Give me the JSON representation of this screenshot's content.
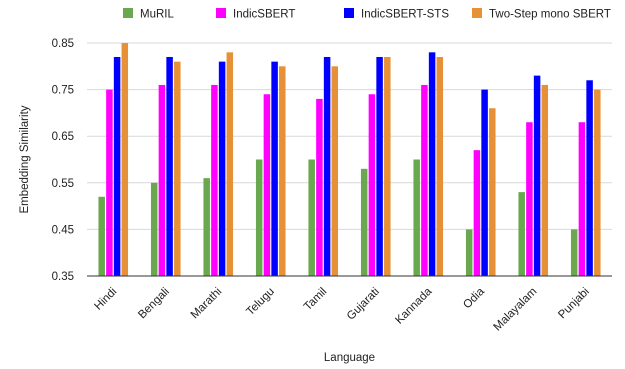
{
  "chart_data": {
    "type": "bar",
    "title": "",
    "xlabel": "Language",
    "ylabel": "Embedding Similarity",
    "ylim": [
      0.35,
      0.85
    ],
    "yticks": [
      0.35,
      0.45,
      0.55,
      0.65,
      0.75,
      0.85
    ],
    "ytick_labels": [
      "0.35",
      "0.45",
      "0.55",
      "0.65",
      "0.75",
      "0.85"
    ],
    "grid": true,
    "legend_position": "top",
    "categories": [
      "Hindi",
      "Bengali",
      "Marathi",
      "Telugu",
      "Tamil",
      "Gujarati",
      "Kannada",
      "Odia",
      "Malayalam",
      "Punjabi"
    ],
    "series": [
      {
        "name": "MuRIL",
        "color": "#6aa84f",
        "values": [
          0.52,
          0.55,
          0.56,
          0.6,
          0.6,
          0.58,
          0.6,
          0.45,
          0.53,
          0.45
        ]
      },
      {
        "name": "IndicSBERT",
        "color": "#ff00ff",
        "values": [
          0.75,
          0.76,
          0.76,
          0.74,
          0.73,
          0.74,
          0.76,
          0.62,
          0.68,
          0.68
        ]
      },
      {
        "name": "IndicSBERT-STS",
        "color": "#0000ff",
        "values": [
          0.82,
          0.82,
          0.81,
          0.81,
          0.82,
          0.82,
          0.83,
          0.75,
          0.78,
          0.77
        ]
      },
      {
        "name": "Two-Step mono SBERT",
        "color": "#e69138",
        "values": [
          0.85,
          0.81,
          0.83,
          0.8,
          0.8,
          0.82,
          0.82,
          0.71,
          0.76,
          0.75
        ]
      }
    ]
  }
}
